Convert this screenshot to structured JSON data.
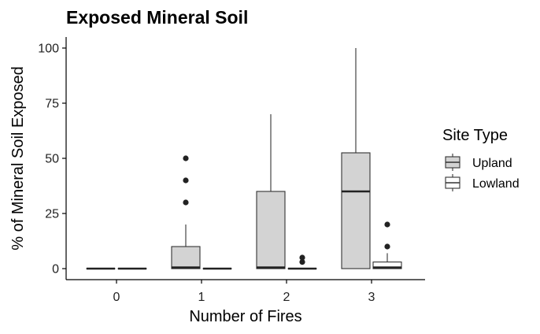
{
  "chart_data": {
    "type": "boxplot",
    "title": "Exposed Mineral Soil",
    "xlabel": "Number of Fires",
    "ylabel": "% of Mineral Soil Exposed",
    "categories": [
      "0",
      "1",
      "2",
      "3"
    ],
    "ylim": [
      -5,
      105
    ],
    "yticks": [
      0,
      25,
      50,
      75,
      100
    ],
    "grid": false,
    "legend": {
      "title": "Site Type",
      "position": "right"
    },
    "series": [
      {
        "name": "Upland",
        "color": "#d3d3d3",
        "boxes": [
          {
            "category": "0",
            "min": 0,
            "q1": 0,
            "median": 0,
            "q3": 0,
            "max": 0,
            "outliers": []
          },
          {
            "category": "1",
            "min": 0,
            "q1": 0,
            "median": 0.5,
            "q3": 10,
            "max": 20,
            "outliers": [
              30,
              40,
              50
            ]
          },
          {
            "category": "2",
            "min": 0,
            "q1": 0,
            "median": 0.5,
            "q3": 35,
            "max": 70,
            "outliers": []
          },
          {
            "category": "3",
            "min": 0,
            "q1": 0,
            "median": 35,
            "q3": 52.5,
            "max": 100,
            "outliers": []
          }
        ]
      },
      {
        "name": "Lowland",
        "color": "#ffffff",
        "boxes": [
          {
            "category": "0",
            "min": 0,
            "q1": 0,
            "median": 0,
            "q3": 0,
            "max": 0,
            "outliers": []
          },
          {
            "category": "1",
            "min": 0,
            "q1": 0,
            "median": 0,
            "q3": 0,
            "max": 0,
            "outliers": []
          },
          {
            "category": "2",
            "min": 0,
            "q1": 0,
            "median": 0,
            "q3": 0,
            "max": 0,
            "outliers": [
              3,
              5
            ]
          },
          {
            "category": "3",
            "min": 0,
            "q1": 0,
            "median": 0.5,
            "q3": 3,
            "max": 7,
            "outliers": [
              10,
              20
            ]
          }
        ]
      }
    ]
  }
}
